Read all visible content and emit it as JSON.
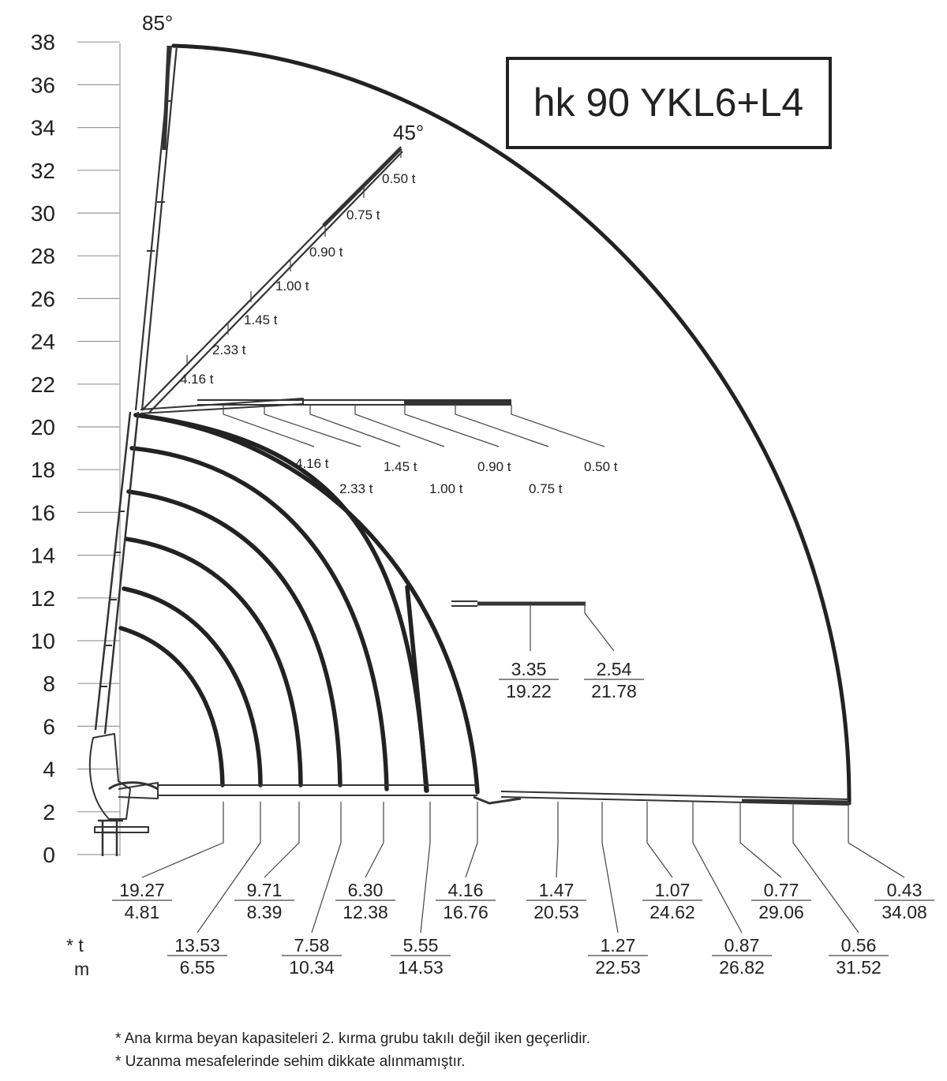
{
  "title": "hk 90 YKL6+L4",
  "angles": {
    "max": "85°",
    "mid": "45°"
  },
  "y_axis": {
    "ticks": [
      "0",
      "2",
      "4",
      "6",
      "8",
      "10",
      "12",
      "14",
      "16",
      "18",
      "20",
      "22",
      "24",
      "26",
      "28",
      "30",
      "32",
      "34",
      "36",
      "38"
    ],
    "min": 0,
    "max": 38
  },
  "boom_45_loads": [
    "0.50 t",
    "0.75 t",
    "0.90 t",
    "1.00 t",
    "1.45 t",
    "2.33 t",
    "4.16 t"
  ],
  "boom_horizontal_loads": [
    "4.16 t",
    "2.33 t",
    "1.45 t",
    "1.00 t",
    "0.90 t",
    "0.75 t",
    "0.50 t"
  ],
  "mid_boom": [
    {
      "t": "3.35",
      "m": "19.22"
    },
    {
      "t": "2.54",
      "m": "21.78"
    }
  ],
  "bottom_capacities": [
    {
      "t": "19.27",
      "m": "4.81"
    },
    {
      "t": "13.53",
      "m": "6.55"
    },
    {
      "t": "9.71",
      "m": "8.39"
    },
    {
      "t": "7.58",
      "m": "10.34"
    },
    {
      "t": "6.30",
      "m": "12.38"
    },
    {
      "t": "5.55",
      "m": "14.53"
    },
    {
      "t": "4.16",
      "m": "16.76"
    },
    {
      "t": "1.47",
      "m": "20.53"
    },
    {
      "t": "1.27",
      "m": "22.53"
    },
    {
      "t": "1.07",
      "m": "24.62"
    },
    {
      "t": "0.87",
      "m": "26.82"
    },
    {
      "t": "0.77",
      "m": "29.06"
    },
    {
      "t": "0.56",
      "m": "31.52"
    },
    {
      "t": "0.43",
      "m": "34.08"
    }
  ],
  "legend": {
    "t": "* t",
    "m": "m"
  },
  "notes": [
    "* Ana kırma beyan kapasiteleri 2. kırma grubu takılı değil iken geçerlidir.",
    "* Uzanma mesafelerinde sehim dikkate alınmamıştır."
  ]
}
